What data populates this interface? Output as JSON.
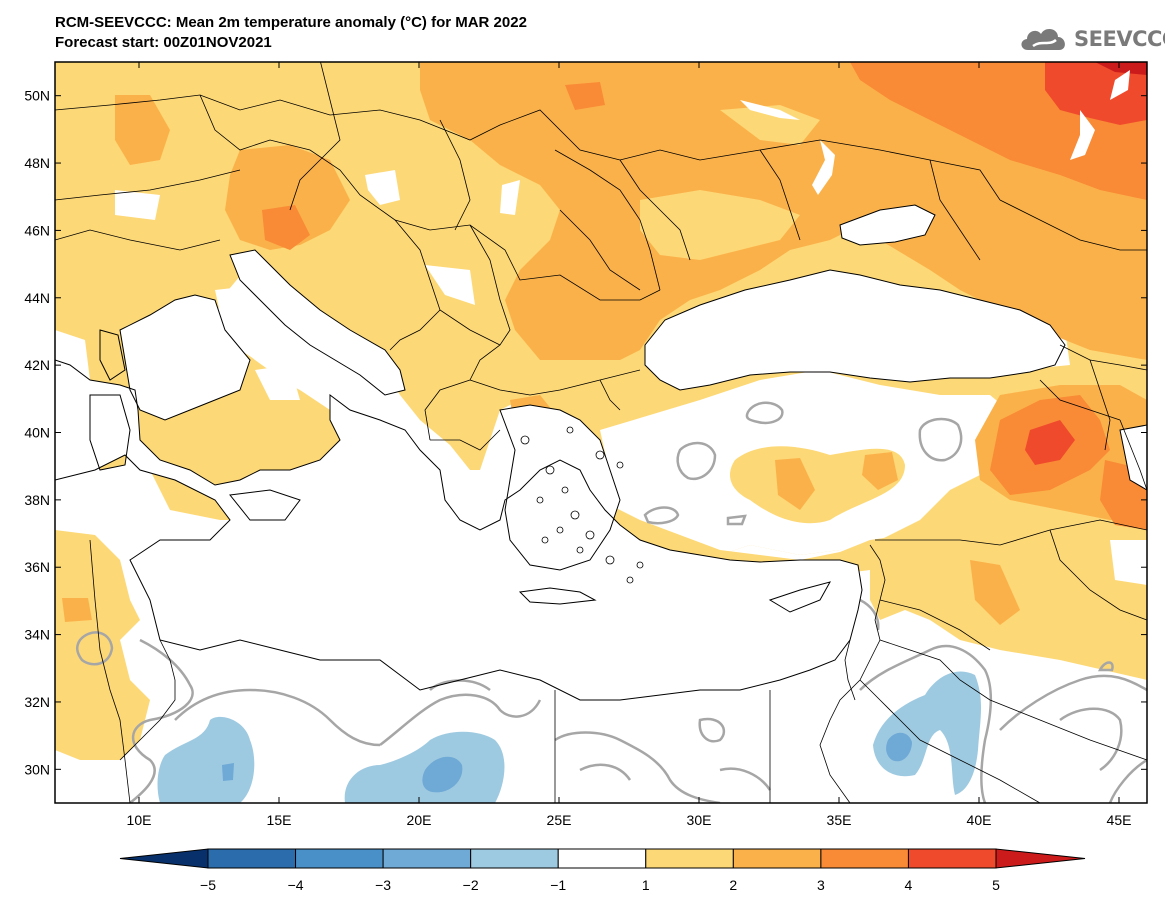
{
  "header": {
    "title": "RCM-SEEVCCC: Mean 2m temperature anomaly (°C) for MAR 2022",
    "subtitle": "Forecast start: 00Z01NOV2021"
  },
  "logo": {
    "text": "SEEVCCC",
    "icon": "cloud-icon"
  },
  "map": {
    "lat_labels": [
      "50N",
      "48N",
      "46N",
      "44N",
      "42N",
      "40N",
      "38N",
      "36N",
      "34N",
      "32N",
      "30N"
    ],
    "lon_labels": [
      "10E",
      "15E",
      "20E",
      "25E",
      "30E",
      "35E",
      "40E",
      "45E"
    ],
    "lat_values": [
      50,
      48,
      46,
      44,
      42,
      40,
      38,
      36,
      34,
      32,
      30
    ],
    "lon_values": [
      10,
      15,
      20,
      25,
      30,
      35,
      40,
      45
    ],
    "lon_range": [
      7,
      46
    ],
    "lat_range": [
      29,
      51
    ]
  },
  "colorbar": {
    "labels": [
      "−5",
      "−4",
      "−3",
      "−2",
      "−1",
      "1",
      "2",
      "3",
      "4",
      "5"
    ],
    "bins": [
      "#08306b",
      "#2b6cad",
      "#4a90c8",
      "#6fa9d6",
      "#9ecae1",
      "#ffffff",
      "#fdd876",
      "#fbb14a",
      "#f98a36",
      "#f04a2c",
      "#cc1b1b"
    ]
  },
  "colors": {
    "very_light": "#fde38a",
    "light": "#fdd876",
    "medium": "#fbb14a",
    "strong": "#f98a36",
    "very_strong": "#f04a2c",
    "cold_light": "#9ecae1",
    "cold_medium": "#6fa9d6",
    "contour": "#a6a6a6",
    "coast": "#000000"
  }
}
